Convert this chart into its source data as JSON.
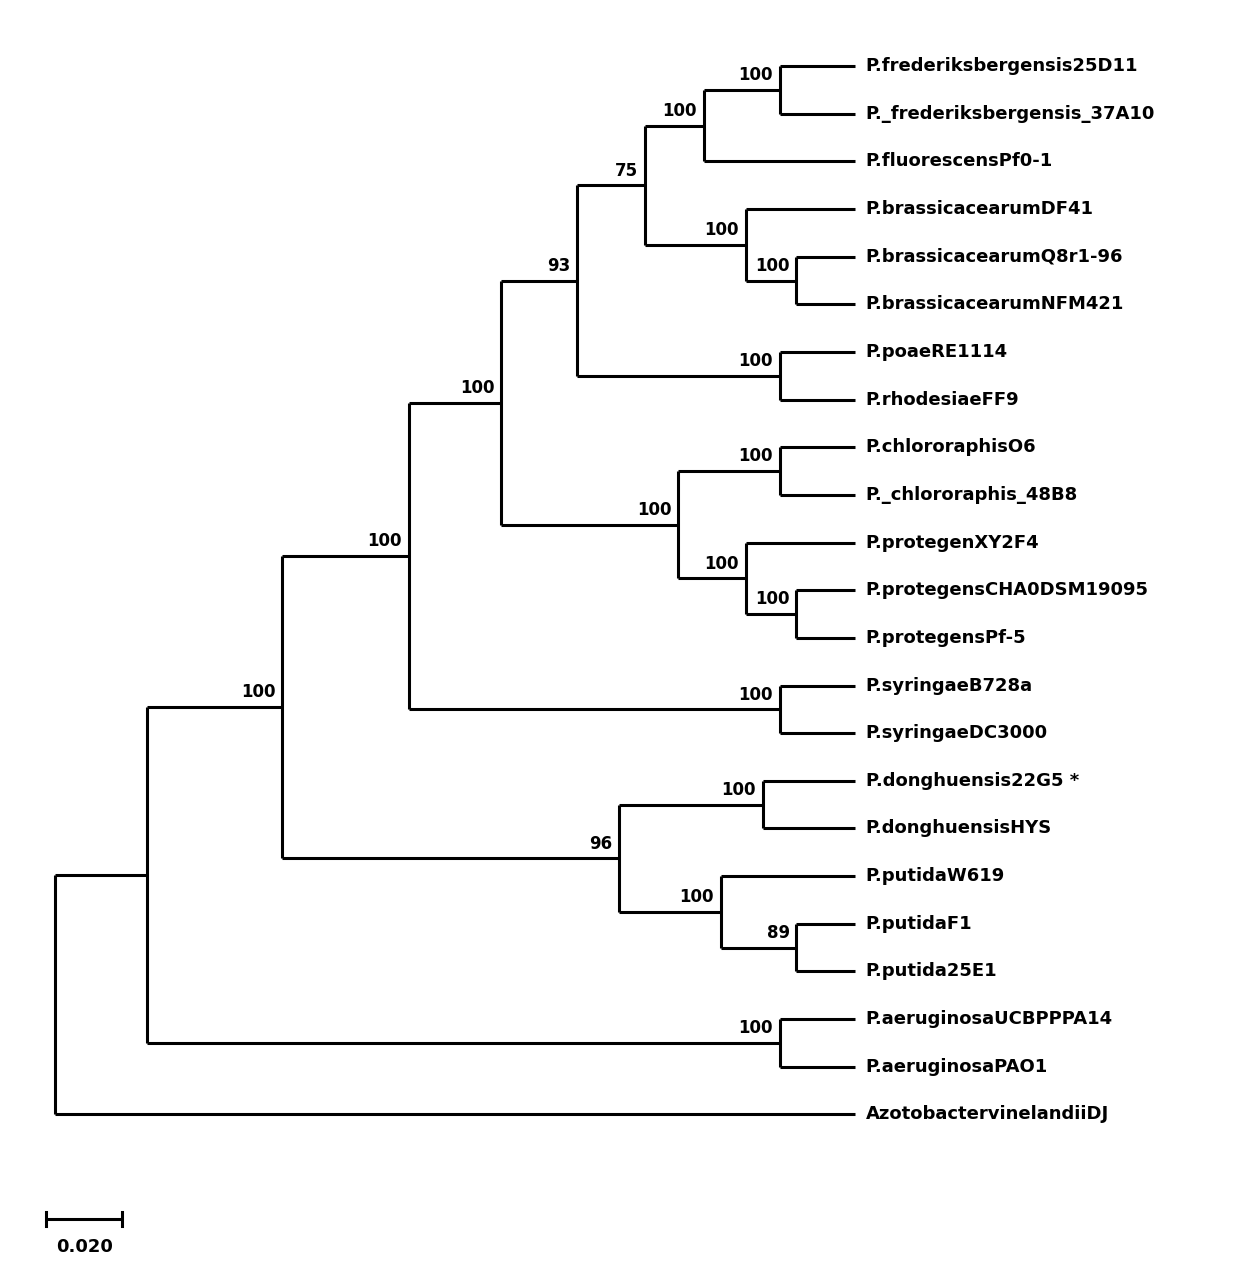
{
  "order": [
    "P.frederiksbergensis25D11",
    "P._frederiksbergensis_37A10",
    "P.fluorescensPf0-1",
    "P.brassicacearumDF41",
    "P.brassicacearumQ8r1-96",
    "P.brassicacearumNFM421",
    "P.poaeRE1114",
    "P.rhodesiaeFF9",
    "P.chlororaphisO6",
    "P._chlororaphis_48B8",
    "P.protegenXY2F4",
    "P.protegensCHA0DSM19095",
    "P.protegensPf-5",
    "P.syringaeB728a",
    "P.syringaeDC3000",
    "P.donghuensis22G5",
    "P.donghuensisHYS",
    "P.putidaW619",
    "P.putidaF1",
    "P.putida25E1",
    "P.aeruginosaUCBPPPA14",
    "P.aeruginosaPAO1",
    "AzotobactervinelandiiDJ"
  ],
  "labels": {
    "P.frederiksbergensis25D11": "P.frederiksbergensis25D11",
    "P._frederiksbergensis_37A10": "P._frederiksbergensis_37A10",
    "P.fluorescensPf0-1": "P.fluorescensPf0-1",
    "P.brassicacearumDF41": "P.brassicacearumDF41",
    "P.brassicacearumQ8r1-96": "P.brassicacearumQ8r1-96",
    "P.brassicacearumNFM421": "P.brassicacearumNFM421",
    "P.poaeRE1114": "P.poaeRE1114",
    "P.rhodesiaeFF9": "P.rhodesiaeFF9",
    "P.chlororaphisO6": "P.chlororaphisO6",
    "P._chlororaphis_48B8": "P._chlororaphis_48B8",
    "P.protegenXY2F4": "P.protegenXY2F4",
    "P.protegensCHA0DSM19095": "P.protegensCHA0DSM19095",
    "P.protegensPf-5": "P.protegensPf-5",
    "P.syringaeB728a": "P.syringaeB728a",
    "P.syringaeDC3000": "P.syringaeDC3000",
    "P.donghuensis22G5": "P.donghuensis22G5 *",
    "P.donghuensisHYS": "P.donghuensisHYS",
    "P.putidaW619": "P.putidaW619",
    "P.putidaF1": "P.putidaF1",
    "P.putida25E1": "P.putida25E1",
    "P.aeruginosaUCBPPPA14": "P.aeruginosaUCBPPPA14",
    "P.aeruginosaPAO1": "P.aeruginosaPAO1",
    "AzotobactervinelandiiDJ": "AzotobactervinelandiiDJ"
  },
  "background_color": "#ffffff",
  "line_color": "#000000",
  "line_width": 2.2,
  "text_color": "#000000",
  "font_size": 13,
  "bootstrap_font_size": 12,
  "scale_bar_value": "0.020",
  "figsize": [
    12.4,
    12.71
  ],
  "dpi": 100
}
